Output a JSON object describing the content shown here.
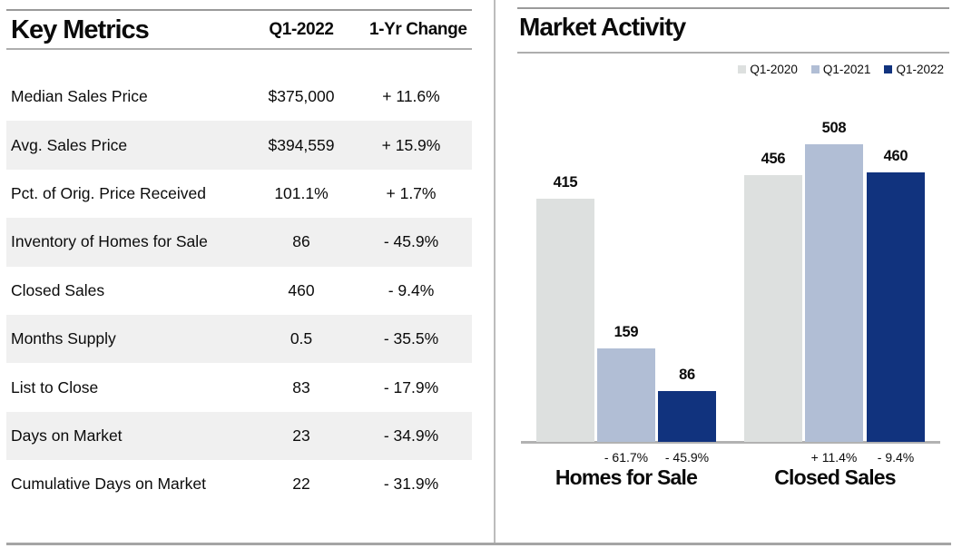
{
  "chart_data": [
    {
      "type": "table",
      "title": "Key Metrics",
      "columns": [
        "Q1-2022",
        "1-Yr Change"
      ],
      "rows": [
        {
          "label": "Median Sales Price",
          "value": "$375,000",
          "change": "+ 11.6%"
        },
        {
          "label": "Avg. Sales Price",
          "value": "$394,559",
          "change": "+ 15.9%"
        },
        {
          "label": "Pct. of Orig. Price Received",
          "value": "101.1%",
          "change": "+ 1.7%"
        },
        {
          "label": "Inventory of Homes for Sale",
          "value": "86",
          "change": "- 45.9%"
        },
        {
          "label": "Closed Sales",
          "value": "460",
          "change": "- 9.4%"
        },
        {
          "label": "Months Supply",
          "value": "0.5",
          "change": "- 35.5%"
        },
        {
          "label": "List to Close",
          "value": "83",
          "change": "- 17.9%"
        },
        {
          "label": "Days on Market",
          "value": "23",
          "change": "- 34.9%"
        },
        {
          "label": "Cumulative Days on Market",
          "value": "22",
          "change": "- 31.9%"
        }
      ],
      "striped_row_color": "#f0f0f0"
    },
    {
      "type": "bar",
      "title": "Market Activity",
      "categories": [
        "Homes for Sale",
        "Closed Sales"
      ],
      "series": [
        {
          "name": "Q1-2020",
          "color": "#dde0df",
          "values": [
            415,
            456
          ]
        },
        {
          "name": "Q1-2021",
          "color": "#b1bed5",
          "values": [
            159,
            508
          ]
        },
        {
          "name": "Q1-2022",
          "color": "#11337e",
          "values": [
            86,
            460
          ]
        }
      ],
      "pct_change_labels": [
        [
          null,
          "- 61.7%",
          "- 45.9%"
        ],
        [
          null,
          "+ 11.4%",
          "- 9.4%"
        ]
      ],
      "ylim": [
        0,
        508
      ],
      "grid": false,
      "legend_position": "top-right",
      "value_labels": true
    }
  ]
}
